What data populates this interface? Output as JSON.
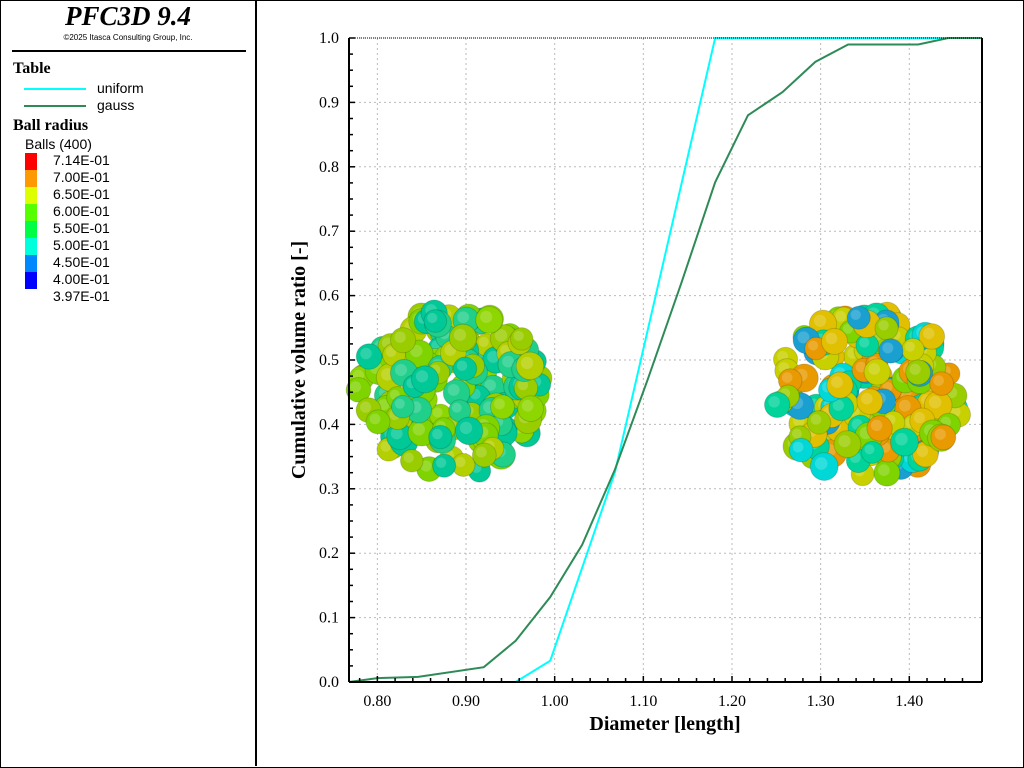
{
  "header": {
    "title": "PFC3D 9.4",
    "copyright": "©2025 Itasca Consulting Group, Inc."
  },
  "legend": {
    "table_heading": "Table",
    "series": [
      {
        "label": "uniform",
        "color": "#00ffff"
      },
      {
        "label": "gauss",
        "color": "#2e8b57"
      }
    ],
    "ball_heading": "Ball radius",
    "balls_label": "Balls (400)",
    "colorbar": [
      {
        "label": "7.14E-01",
        "color": "#ff0000"
      },
      {
        "label": "7.00E-01",
        "color": "#ff9900"
      },
      {
        "label": "6.50E-01",
        "color": "#ddff00"
      },
      {
        "label": "6.00E-01",
        "color": "#55ff00"
      },
      {
        "label": "5.50E-01",
        "color": "#00ff44"
      },
      {
        "label": "5.00E-01",
        "color": "#00ffdd"
      },
      {
        "label": "4.50E-01",
        "color": "#0088ff"
      },
      {
        "label": "4.00E-01",
        "color": "#0000ff"
      },
      {
        "label": "3.97E-01",
        "color": "#0000ff"
      }
    ]
  },
  "chart_data": {
    "type": "line",
    "xlabel": "Diameter [length]",
    "ylabel": "Cumulative volume ratio [-]",
    "xlim": [
      0.768,
      1.482
    ],
    "ylim": [
      0,
      1.0
    ],
    "grid": true,
    "xticks": [
      "0.80",
      "0.90",
      "1.00",
      "1.10",
      "1.20",
      "1.30",
      "1.40"
    ],
    "yticks": [
      "0.0",
      "0.1",
      "0.2",
      "0.3",
      "0.4",
      "0.5",
      "0.6",
      "0.7",
      "0.8",
      "0.9",
      "1.0"
    ],
    "series": [
      {
        "name": "uniform",
        "color": "#00ffff",
        "points": [
          [
            0.768,
            0
          ],
          [
            0.956,
            0
          ],
          [
            0.995,
            0.033
          ],
          [
            1.068,
            0.326
          ],
          [
            1.181,
            1.0
          ],
          [
            1.482,
            1.0
          ]
        ]
      },
      {
        "name": "gauss",
        "color": "#2e8b57",
        "points": [
          [
            0.768,
            0
          ],
          [
            0.8,
            0.006
          ],
          [
            0.846,
            0.008
          ],
          [
            0.92,
            0.023
          ],
          [
            0.956,
            0.064
          ],
          [
            0.995,
            0.132
          ],
          [
            1.031,
            0.213
          ],
          [
            1.068,
            0.33
          ],
          [
            1.105,
            0.47
          ],
          [
            1.143,
            0.62
          ],
          [
            1.181,
            0.776
          ],
          [
            1.218,
            0.88
          ],
          [
            1.257,
            0.916
          ],
          [
            1.294,
            0.963
          ],
          [
            1.331,
            0.99
          ],
          [
            1.41,
            0.99
          ],
          [
            1.444,
            1.0
          ],
          [
            1.482,
            1.0
          ]
        ]
      }
    ]
  }
}
